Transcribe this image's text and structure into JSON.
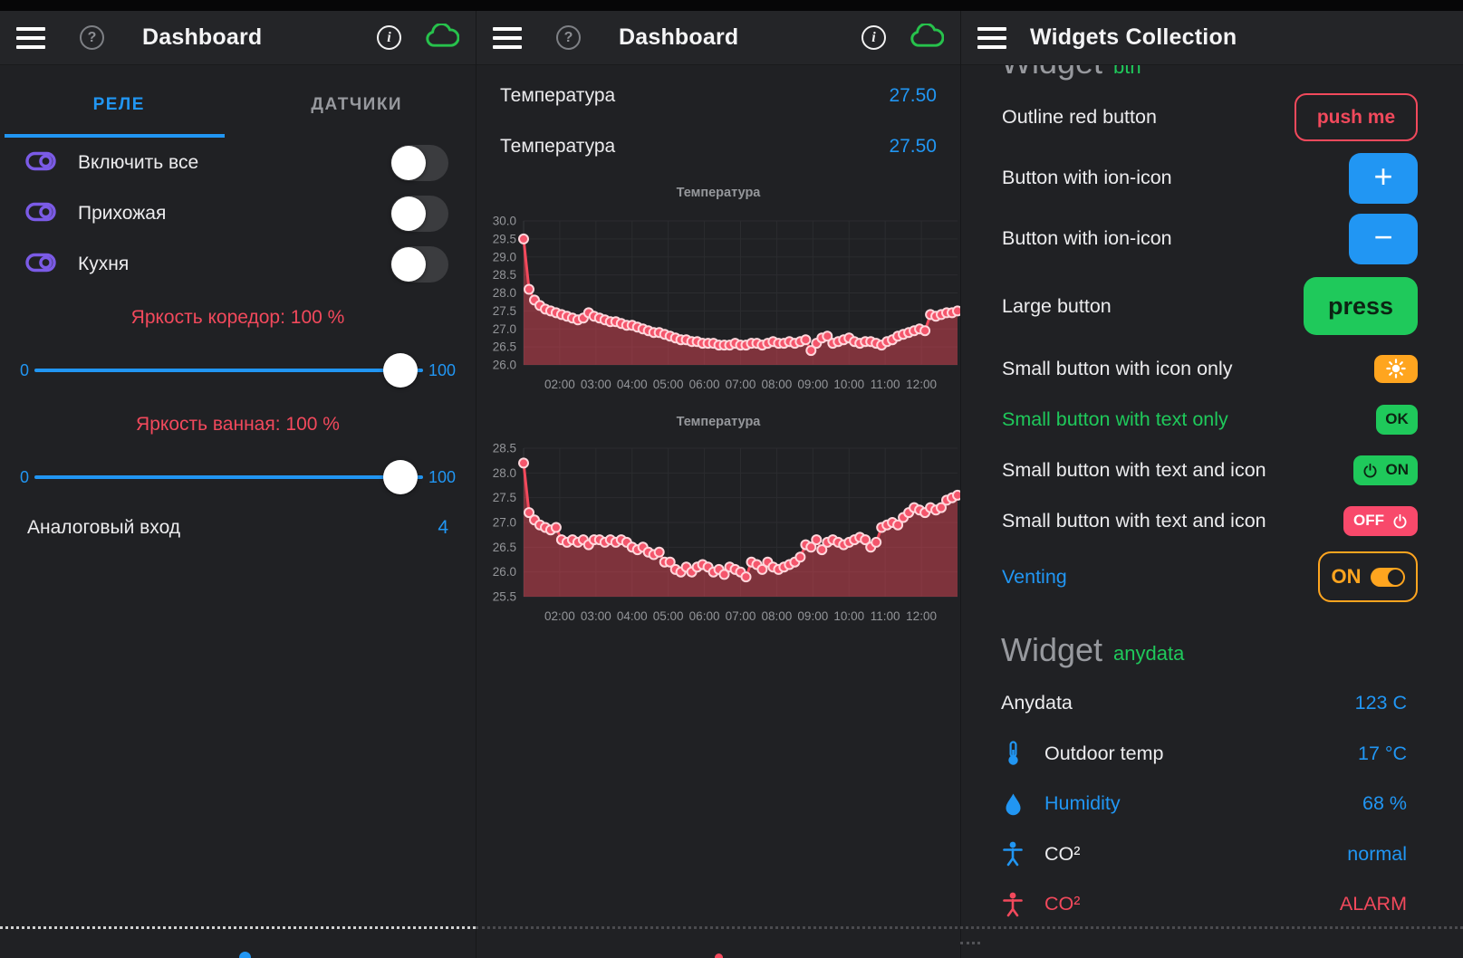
{
  "colors": {
    "blue": "#2196F3",
    "red": "#F2495C",
    "green": "#1FC95B",
    "orange": "#FFA51F",
    "purple": "#7B5BE6",
    "btnred": "#F8496B",
    "chart_line": "#F2495C",
    "chart_fill": "rgba(242,73,92,0.45)"
  },
  "left_panel": {
    "header": {
      "title": "Dashboard",
      "icons": [
        "hamburger",
        "help",
        "info",
        "cloud"
      ]
    },
    "tabs": {
      "active": "РЕЛЕ",
      "inactive": "ДАТЧИКИ"
    },
    "relays": [
      {
        "label": "Включить все",
        "state": "off"
      },
      {
        "label": "Прихожая",
        "state": "off"
      },
      {
        "label": "Кухня",
        "state": "off"
      }
    ],
    "sliders": [
      {
        "label": "Яркость коредор: 100 %",
        "min": "0",
        "max": "100",
        "value": 100
      },
      {
        "label": "Яркость ванная: 100 %",
        "min": "0",
        "max": "100",
        "value": 100
      }
    ],
    "analog": {
      "label": "Аналоговый вход",
      "value": "4"
    }
  },
  "mid_panel": {
    "header": {
      "title": "Dashboard",
      "icons": [
        "hamburger",
        "help",
        "info",
        "cloud"
      ]
    },
    "values": [
      {
        "label": "Температура",
        "value": "27.50"
      },
      {
        "label": "Температура",
        "value": "27.50"
      }
    ]
  },
  "right_panel": {
    "header": {
      "title": "Widgets Collection",
      "icons": [
        "hamburger"
      ]
    },
    "clipped_heading": {
      "title": "Widget",
      "sub": "btn"
    },
    "rows": [
      {
        "label": "Outline red button",
        "button_text": "push me"
      },
      {
        "label": "Button with ion-icon",
        "icon_char": "+"
      },
      {
        "label": "Button with ion-icon",
        "icon_char": "−"
      },
      {
        "label": "Large button",
        "button_text": "press"
      },
      {
        "label": "Small button with icon only",
        "icon": "sun"
      },
      {
        "label": "Small button with text only",
        "button_text": "OK"
      },
      {
        "label": "Small button with text and icon",
        "button_text": "ON",
        "icon": "power"
      },
      {
        "label": "Small button with text and icon",
        "button_text": "OFF",
        "icon": "power"
      },
      {
        "label": "Venting",
        "button_text": "ON",
        "toggle": "on"
      }
    ],
    "section_heading": {
      "title": "Widget",
      "sub": "anydata"
    },
    "data_rows": [
      {
        "label": "Anydata",
        "value": "123 C"
      },
      {
        "icon": "thermometer",
        "label": "Outdoor temp",
        "value": "17 °C"
      },
      {
        "icon": "droplet",
        "label": "Humidity",
        "value": "68 %"
      },
      {
        "icon": "person",
        "label": "CO²",
        "value": "normal"
      },
      {
        "icon": "person",
        "label": "CO²",
        "value": "ALARM"
      }
    ]
  },
  "chart_data": [
    {
      "type": "line",
      "title": "Температура",
      "ylim": [
        26.0,
        30.0
      ],
      "yticks": [
        "30.0",
        "29.5",
        "29.0",
        "28.5",
        "28.0",
        "27.5",
        "27.0",
        "26.5",
        "26.0"
      ],
      "xlabels": [
        "02:00",
        "03:00",
        "04:00",
        "05:00",
        "06:00",
        "07:00",
        "08:00",
        "09:00",
        "10:00",
        "11:00",
        "12:00"
      ],
      "grid": true,
      "legend": "none",
      "values": [
        29.5,
        28.1,
        27.8,
        27.65,
        27.55,
        27.5,
        27.45,
        27.4,
        27.35,
        27.3,
        27.25,
        27.3,
        27.45,
        27.35,
        27.3,
        27.25,
        27.2,
        27.2,
        27.15,
        27.1,
        27.1,
        27.05,
        27.0,
        26.95,
        26.9,
        26.9,
        26.85,
        26.8,
        26.75,
        26.7,
        26.7,
        26.65,
        26.65,
        26.6,
        26.6,
        26.6,
        26.55,
        26.55,
        26.55,
        26.6,
        26.55,
        26.55,
        26.6,
        26.6,
        26.55,
        26.6,
        26.65,
        26.6,
        26.6,
        26.65,
        26.6,
        26.65,
        26.7,
        26.4,
        26.6,
        26.75,
        26.8,
        26.6,
        26.65,
        26.7,
        26.75,
        26.65,
        26.6,
        26.65,
        26.65,
        26.6,
        26.55,
        26.65,
        26.7,
        26.8,
        26.85,
        26.9,
        26.95,
        27.0,
        26.95,
        27.4,
        27.35,
        27.4,
        27.45,
        27.45,
        27.5
      ]
    },
    {
      "type": "line",
      "title": "Температура",
      "ylim": [
        25.5,
        28.5
      ],
      "yticks": [
        "28.5",
        "28.0",
        "27.5",
        "27.0",
        "26.5",
        "26.0",
        "25.5"
      ],
      "xlabels": [
        "02:00",
        "03:00",
        "04:00",
        "05:00",
        "06:00",
        "07:00",
        "08:00",
        "09:00",
        "10:00",
        "11:00",
        "12:00"
      ],
      "grid": true,
      "legend": "none",
      "values": [
        28.2,
        27.2,
        27.05,
        26.95,
        26.9,
        26.85,
        26.9,
        26.65,
        26.6,
        26.65,
        26.6,
        26.65,
        26.55,
        26.65,
        26.65,
        26.6,
        26.65,
        26.6,
        26.65,
        26.6,
        26.5,
        26.45,
        26.5,
        26.4,
        26.35,
        26.4,
        26.2,
        26.2,
        26.05,
        26.0,
        26.1,
        26.0,
        26.1,
        26.15,
        26.1,
        26.0,
        26.05,
        25.95,
        26.1,
        26.05,
        26.0,
        25.9,
        26.2,
        26.15,
        26.05,
        26.2,
        26.1,
        26.05,
        26.1,
        26.15,
        26.2,
        26.3,
        26.55,
        26.5,
        26.65,
        26.45,
        26.6,
        26.65,
        26.6,
        26.55,
        26.6,
        26.65,
        26.7,
        26.65,
        26.5,
        26.6,
        26.9,
        26.95,
        27.0,
        26.95,
        27.1,
        27.2,
        27.3,
        27.25,
        27.2,
        27.3,
        27.25,
        27.3,
        27.45,
        27.5,
        27.55
      ]
    }
  ]
}
